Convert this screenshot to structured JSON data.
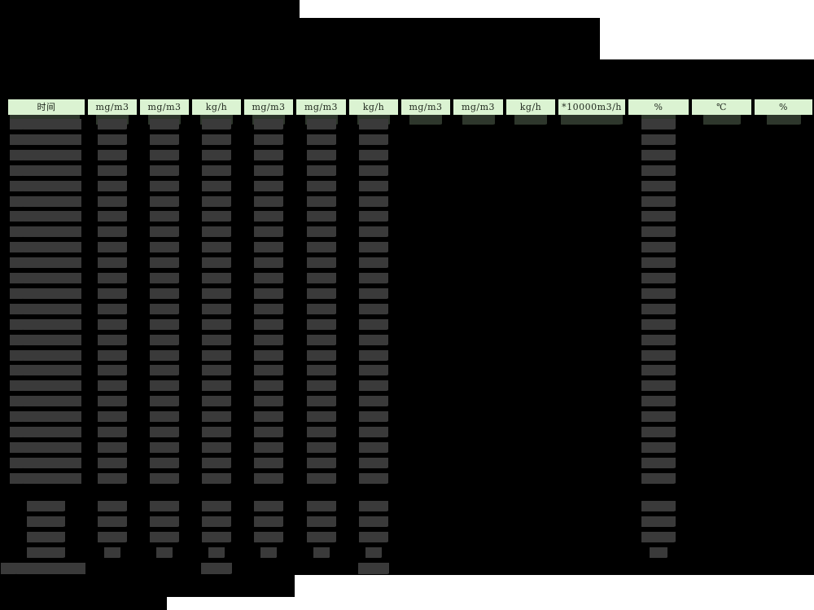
{
  "colors": {
    "page_bg": "#ffffff",
    "redaction_black": "#000000",
    "header_fill": "#dbf3d2",
    "header_text": "#222a20",
    "scribble": "#3a3a3a",
    "scribble_peek": "#2e372c"
  },
  "table": {
    "columns": [
      {
        "label": "时间"
      },
      {
        "label": "mg/m3"
      },
      {
        "label": "mg/m3"
      },
      {
        "label": "kg/h"
      },
      {
        "label": "mg/m3"
      },
      {
        "label": "mg/m3"
      },
      {
        "label": "kg/h"
      },
      {
        "label": "mg/m3"
      },
      {
        "label": "mg/m3"
      },
      {
        "label": "kg/h"
      },
      {
        "label": "*10000m3/h"
      },
      {
        "label": "%"
      },
      {
        "label": "℃"
      },
      {
        "label": "%"
      }
    ],
    "redaction": {
      "main_row_count": 24,
      "main_filled_column_indexes": [
        0,
        1,
        2,
        3,
        4,
        5,
        6,
        11
      ],
      "header_peek_column_indexes": [
        0,
        1,
        2,
        3,
        4,
        5,
        6,
        7,
        8,
        9,
        10,
        11,
        12,
        13
      ],
      "summary_row_count": 4,
      "summary_filled_column_indexes": [
        1,
        2,
        3,
        4,
        5,
        6,
        11
      ],
      "total_row_filled_column_indexes": [
        3,
        6
      ]
    }
  }
}
